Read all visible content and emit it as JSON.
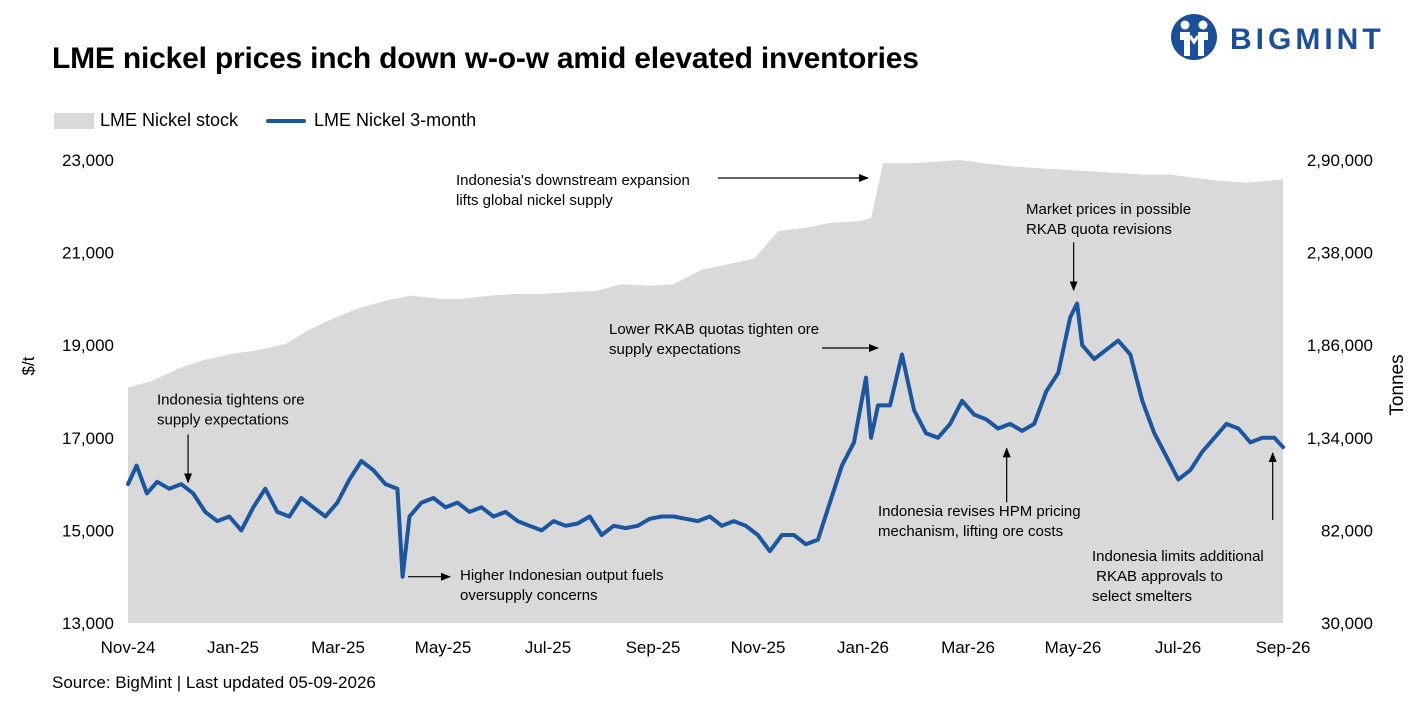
{
  "title": "LME nickel prices inch down w-o-w amid elevated inventories",
  "logo": {
    "text": "BIGMINT",
    "color": "#1b4f9c"
  },
  "source": "Source: BigMint | Last updated 05-09-2026",
  "colors": {
    "area": "#d9d9d9",
    "line": "#1b56a0"
  },
  "chart_data": {
    "type": "line",
    "legend_position": "top-left",
    "grid": false,
    "ylabel": "$/t",
    "y2label": "Tonnes",
    "ylim": [
      13000,
      23000
    ],
    "y2lim": [
      30000,
      2900000
    ],
    "yticks": [
      "13,000",
      "15,000",
      "17,000",
      "19,000",
      "21,000",
      "23,000"
    ],
    "y2ticks": [
      "30,000",
      "82,000",
      "1,34,000",
      "1,86,000",
      "2,38,000",
      "2,90,000"
    ],
    "xticks": [
      "Nov-24",
      "Jan-25",
      "Mar-25",
      "May-25",
      "Jul-25",
      "Sep-25",
      "Nov-25",
      "Jan-26",
      "Mar-26",
      "May-26",
      "Jul-26",
      "Sep-26"
    ],
    "xlim": [
      "2024-11-01",
      "2026-09-05"
    ],
    "series": [
      {
        "name": "LME Nickel stock",
        "type": "area",
        "axis": "right",
        "points": [
          [
            "2024-11-01",
            1490000
          ],
          [
            "2024-11-15",
            1530000
          ],
          [
            "2024-12-01",
            1610000
          ],
          [
            "2024-12-15",
            1660000
          ],
          [
            "2025-01-01",
            1700000
          ],
          [
            "2025-01-15",
            1720000
          ],
          [
            "2025-02-01",
            1760000
          ],
          [
            "2025-02-15",
            1850000
          ],
          [
            "2025-03-01",
            1920000
          ],
          [
            "2025-03-15",
            1980000
          ],
          [
            "2025-04-01",
            2030000
          ],
          [
            "2025-04-15",
            2060000
          ],
          [
            "2025-05-01",
            2040000
          ],
          [
            "2025-05-15",
            2040000
          ],
          [
            "2025-06-01",
            2060000
          ],
          [
            "2025-06-15",
            2070000
          ],
          [
            "2025-07-01",
            2070000
          ],
          [
            "2025-07-15",
            2080000
          ],
          [
            "2025-08-01",
            2090000
          ],
          [
            "2025-08-15",
            2130000
          ],
          [
            "2025-09-01",
            2120000
          ],
          [
            "2025-09-15",
            2130000
          ],
          [
            "2025-10-01",
            2220000
          ],
          [
            "2025-10-15",
            2250000
          ],
          [
            "2025-11-01",
            2290000
          ],
          [
            "2025-11-15",
            2460000
          ],
          [
            "2025-12-01",
            2480000
          ],
          [
            "2025-12-15",
            2510000
          ],
          [
            "2026-01-01",
            2520000
          ],
          [
            "2026-01-08",
            2540000
          ],
          [
            "2026-01-15",
            2880000
          ],
          [
            "2026-02-01",
            2880000
          ],
          [
            "2026-02-15",
            2890000
          ],
          [
            "2026-03-01",
            2900000
          ],
          [
            "2026-03-15",
            2880000
          ],
          [
            "2026-04-01",
            2860000
          ],
          [
            "2026-04-15",
            2850000
          ],
          [
            "2026-05-01",
            2840000
          ],
          [
            "2026-05-15",
            2830000
          ],
          [
            "2026-06-01",
            2820000
          ],
          [
            "2026-06-15",
            2810000
          ],
          [
            "2026-07-01",
            2810000
          ],
          [
            "2026-07-15",
            2790000
          ],
          [
            "2026-08-01",
            2770000
          ],
          [
            "2026-08-15",
            2760000
          ],
          [
            "2026-09-05",
            2780000
          ]
        ]
      },
      {
        "name": "LME Nickel 3-month",
        "type": "line",
        "axis": "left",
        "points": [
          [
            "2024-11-01",
            16000
          ],
          [
            "2024-11-06",
            16400
          ],
          [
            "2024-11-12",
            15800
          ],
          [
            "2024-11-18",
            16050
          ],
          [
            "2024-11-25",
            15900
          ],
          [
            "2024-12-02",
            16000
          ],
          [
            "2024-12-09",
            15800
          ],
          [
            "2024-12-16",
            15400
          ],
          [
            "2024-12-23",
            15200
          ],
          [
            "2024-12-30",
            15300
          ],
          [
            "2025-01-06",
            15000
          ],
          [
            "2025-01-13",
            15500
          ],
          [
            "2025-01-20",
            15900
          ],
          [
            "2025-01-27",
            15400
          ],
          [
            "2025-02-03",
            15300
          ],
          [
            "2025-02-10",
            15700
          ],
          [
            "2025-02-17",
            15500
          ],
          [
            "2025-02-24",
            15300
          ],
          [
            "2025-03-03",
            15600
          ],
          [
            "2025-03-10",
            16100
          ],
          [
            "2025-03-17",
            16500
          ],
          [
            "2025-03-24",
            16300
          ],
          [
            "2025-03-31",
            16000
          ],
          [
            "2025-04-07",
            15900
          ],
          [
            "2025-04-10",
            14000
          ],
          [
            "2025-04-14",
            15300
          ],
          [
            "2025-04-21",
            15600
          ],
          [
            "2025-04-28",
            15700
          ],
          [
            "2025-05-05",
            15500
          ],
          [
            "2025-05-12",
            15600
          ],
          [
            "2025-05-19",
            15400
          ],
          [
            "2025-05-26",
            15500
          ],
          [
            "2025-06-02",
            15300
          ],
          [
            "2025-06-09",
            15400
          ],
          [
            "2025-06-16",
            15200
          ],
          [
            "2025-06-23",
            15100
          ],
          [
            "2025-06-30",
            15000
          ],
          [
            "2025-07-07",
            15200
          ],
          [
            "2025-07-14",
            15100
          ],
          [
            "2025-07-21",
            15150
          ],
          [
            "2025-07-28",
            15300
          ],
          [
            "2025-08-04",
            14900
          ],
          [
            "2025-08-11",
            15100
          ],
          [
            "2025-08-18",
            15050
          ],
          [
            "2025-08-25",
            15100
          ],
          [
            "2025-09-01",
            15250
          ],
          [
            "2025-09-08",
            15300
          ],
          [
            "2025-09-15",
            15300
          ],
          [
            "2025-09-22",
            15250
          ],
          [
            "2025-09-29",
            15200
          ],
          [
            "2025-10-06",
            15300
          ],
          [
            "2025-10-13",
            15100
          ],
          [
            "2025-10-20",
            15200
          ],
          [
            "2025-10-27",
            15100
          ],
          [
            "2025-11-03",
            14900
          ],
          [
            "2025-11-10",
            14550
          ],
          [
            "2025-11-17",
            14900
          ],
          [
            "2025-11-24",
            14900
          ],
          [
            "2025-12-01",
            14700
          ],
          [
            "2025-12-08",
            14800
          ],
          [
            "2025-12-15",
            15600
          ],
          [
            "2025-12-22",
            16400
          ],
          [
            "2025-12-29",
            16900
          ],
          [
            "2026-01-05",
            18300
          ],
          [
            "2026-01-08",
            17000
          ],
          [
            "2026-01-12",
            17700
          ],
          [
            "2026-01-19",
            17700
          ],
          [
            "2026-01-26",
            18800
          ],
          [
            "2026-02-02",
            17600
          ],
          [
            "2026-02-09",
            17100
          ],
          [
            "2026-02-16",
            17000
          ],
          [
            "2026-02-23",
            17300
          ],
          [
            "2026-03-02",
            17800
          ],
          [
            "2026-03-09",
            17500
          ],
          [
            "2026-03-16",
            17400
          ],
          [
            "2026-03-23",
            17200
          ],
          [
            "2026-03-30",
            17300
          ],
          [
            "2026-04-06",
            17150
          ],
          [
            "2026-04-13",
            17300
          ],
          [
            "2026-04-20",
            18000
          ],
          [
            "2026-04-27",
            18400
          ],
          [
            "2026-05-04",
            19600
          ],
          [
            "2026-05-08",
            19900
          ],
          [
            "2026-05-11",
            19000
          ],
          [
            "2026-05-18",
            18700
          ],
          [
            "2026-05-25",
            18900
          ],
          [
            "2026-06-01",
            19100
          ],
          [
            "2026-06-08",
            18800
          ],
          [
            "2026-06-15",
            17800
          ],
          [
            "2026-06-22",
            17100
          ],
          [
            "2026-06-29",
            16600
          ],
          [
            "2026-07-06",
            16100
          ],
          [
            "2026-07-13",
            16300
          ],
          [
            "2026-07-20",
            16700
          ],
          [
            "2026-07-27",
            17000
          ],
          [
            "2026-08-03",
            17300
          ],
          [
            "2026-08-10",
            17200
          ],
          [
            "2026-08-17",
            16900
          ],
          [
            "2026-08-24",
            17000
          ],
          [
            "2026-08-31",
            17000
          ],
          [
            "2026-09-05",
            16800
          ]
        ]
      }
    ],
    "annotations": [
      {
        "lines": [
          "Indonesia tightens ore",
          "supply expectations"
        ],
        "text_anchor": "start",
        "arrow_dir": "down",
        "target": [
          "2024-12-06",
          15950
        ]
      },
      {
        "lines": [
          "Higher Indonesian output fuels",
          "oversupply concerns"
        ],
        "text_anchor": "start",
        "arrow_dir": "right",
        "target": [
          "2025-04-22",
          14000
        ]
      },
      {
        "lines": [
          "Indonesia's downstream expansion",
          "lifts global nickel supply"
        ],
        "text_anchor": "start",
        "arrow_dir": "right",
        "target": [
          "2026-01-08",
          22980
        ]
      },
      {
        "lines": [
          "Lower RKAB quotas tighten ore",
          "supply expectations"
        ],
        "text_anchor": "start",
        "arrow_dir": "right",
        "target": [
          "2026-01-09",
          18950
        ]
      },
      {
        "lines": [
          "Market prices in possible",
          "RKAB quota revisions"
        ],
        "text_anchor": "start",
        "arrow_dir": "down",
        "target": [
          "2026-05-06",
          20100
        ]
      },
      {
        "lines": [
          "Indonesia revises HPM pricing",
          "mechanism, lifting ore costs"
        ],
        "text_anchor": "start",
        "arrow_dir": "up",
        "target": [
          "2026-03-28",
          16900
        ]
      },
      {
        "lines": [
          "Indonesia limits additional",
          " RKAB approvals to",
          "select smelters"
        ],
        "text_anchor": "start",
        "arrow_dir": "up",
        "target": [
          "2026-08-30",
          16800
        ]
      }
    ]
  }
}
